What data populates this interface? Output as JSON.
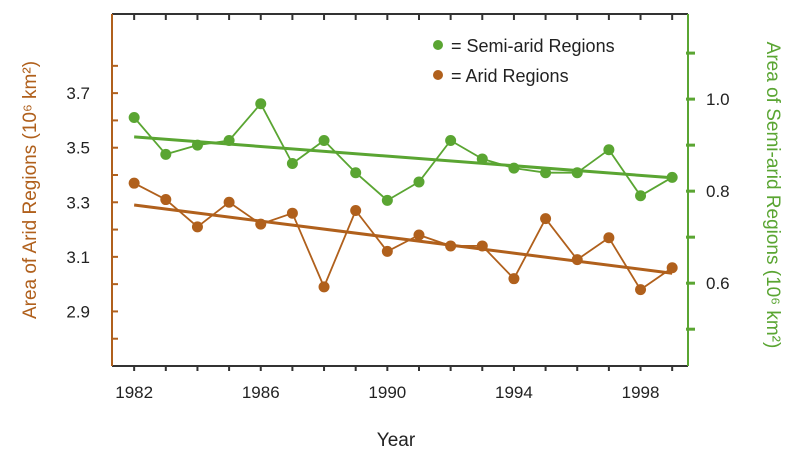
{
  "chart_data": {
    "type": "line",
    "xlabel": "Year",
    "ylabel_left": "Area of Arid Regions (10⁶ km²)",
    "ylabel_right": "Area of Semi-arid Regions (10⁶ km²)",
    "xlim": [
      1981.3,
      1999.5
    ],
    "ylim_left": [
      2.7,
      3.99
    ],
    "ylim_right": [
      0.42,
      1.185
    ],
    "x_ticks": [
      1982,
      1986,
      1990,
      1994,
      1998
    ],
    "x_tick_labels": [
      "1982",
      "1986",
      "1990",
      "1994",
      "1998"
    ],
    "y_left_ticks": [
      2.9,
      3.1,
      3.3,
      3.5,
      3.7
    ],
    "y_left_tick_labels": [
      "2.9",
      "3.1",
      "3.3",
      "3.5",
      "3.7"
    ],
    "y_right_ticks": [
      0.6,
      0.8,
      1.0
    ],
    "y_right_tick_labels": [
      "0.6",
      "0.8",
      "1.0"
    ],
    "legend": {
      "placement": "top-right",
      "entries": [
        "= Semi-arid Regions",
        "= Arid Regions"
      ]
    },
    "series": [
      {
        "name": "Semi-arid Regions",
        "axis": "right",
        "color": "#5aa532",
        "x": [
          1982,
          1983,
          1984,
          1985,
          1986,
          1987,
          1988,
          1989,
          1990,
          1991,
          1992,
          1993,
          1994,
          1995,
          1996,
          1997,
          1998,
          1999
        ],
        "values": [
          0.96,
          0.88,
          0.9,
          0.91,
          0.99,
          0.86,
          0.91,
          0.84,
          0.78,
          0.82,
          0.91,
          0.87,
          0.85,
          0.84,
          0.84,
          0.89,
          0.79,
          0.83
        ],
        "trend": [
          0.918,
          0.829
        ]
      },
      {
        "name": "Arid Regions",
        "axis": "left",
        "color": "#b0601c",
        "x": [
          1982,
          1983,
          1984,
          1985,
          1986,
          1987,
          1988,
          1989,
          1990,
          1991,
          1992,
          1993,
          1994,
          1995,
          1996,
          1997,
          1998,
          1999
        ],
        "values": [
          3.37,
          3.31,
          3.21,
          3.3,
          3.22,
          3.26,
          2.99,
          3.27,
          3.12,
          3.18,
          3.14,
          3.14,
          3.02,
          3.24,
          3.09,
          3.17,
          2.98,
          3.06
        ],
        "trend": [
          3.29,
          3.04
        ]
      }
    ]
  }
}
